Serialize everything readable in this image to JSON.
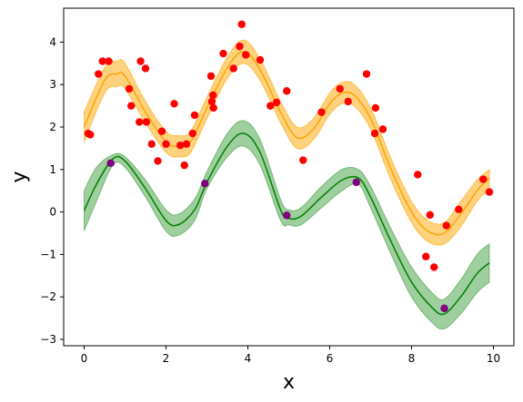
{
  "chart_data": {
    "type": "scatter",
    "xlabel": "x",
    "ylabel": "y",
    "xlim": [
      -0.5,
      10.5
    ],
    "ylim": [
      -3.15,
      4.8
    ],
    "xticks": [
      0,
      2,
      4,
      6,
      8,
      10
    ],
    "yticks": [
      -3,
      -2,
      -1,
      0,
      1,
      2,
      3,
      4
    ],
    "xtick_labels": [
      "0",
      "2",
      "4",
      "6",
      "8",
      "10"
    ],
    "ytick_labels": [
      "−3",
      "−2",
      "−1",
      "0",
      "1",
      "2",
      "3",
      "4"
    ],
    "grid": false,
    "curves": [
      {
        "color": "#ffa500",
        "band_color": "#ffa500",
        "x": [
          0.0,
          0.5,
          0.8,
          1.0,
          1.5,
          2.0,
          2.3,
          2.6,
          3.0,
          3.5,
          3.9,
          4.3,
          4.8,
          5.2,
          5.6,
          6.0,
          6.3,
          6.6,
          7.0,
          7.5,
          8.0,
          8.4,
          8.8,
          9.2,
          9.6,
          9.9
        ],
        "y": [
          2.0,
          3.1,
          3.25,
          3.2,
          2.35,
          1.65,
          1.55,
          1.65,
          2.45,
          3.4,
          3.78,
          3.35,
          2.35,
          1.75,
          1.95,
          2.55,
          2.8,
          2.75,
          2.2,
          1.0,
          0.0,
          -0.45,
          -0.5,
          -0.05,
          0.5,
          0.8
        ],
        "upper": [
          2.35,
          3.4,
          3.55,
          3.5,
          2.6,
          1.9,
          1.8,
          1.9,
          2.7,
          3.65,
          4.05,
          3.6,
          2.6,
          2.0,
          2.2,
          2.8,
          3.05,
          3.0,
          2.45,
          1.25,
          0.25,
          -0.2,
          -0.25,
          0.25,
          0.75,
          1.0
        ],
        "lower": [
          1.65,
          2.8,
          2.95,
          2.9,
          2.1,
          1.4,
          1.3,
          1.4,
          2.2,
          3.15,
          3.5,
          3.1,
          2.1,
          1.5,
          1.7,
          2.3,
          2.55,
          2.5,
          1.95,
          0.75,
          -0.25,
          -0.7,
          -0.75,
          -0.35,
          0.25,
          0.55
        ]
      },
      {
        "color": "#008000",
        "band_color": "#3f9e3f",
        "x": [
          0.0,
          0.3,
          0.7,
          1.0,
          1.5,
          2.0,
          2.3,
          2.7,
          3.0,
          3.5,
          3.9,
          4.3,
          4.8,
          5.0,
          5.3,
          5.8,
          6.3,
          6.7,
          7.0,
          7.5,
          8.0,
          8.5,
          8.8,
          9.2,
          9.6,
          9.9
        ],
        "y": [
          0.03,
          0.65,
          1.25,
          1.2,
          0.55,
          -0.2,
          -0.3,
          0.05,
          0.7,
          1.55,
          1.85,
          1.4,
          0.05,
          -0.15,
          -0.1,
          0.35,
          0.75,
          0.8,
          0.35,
          -0.7,
          -1.65,
          -2.25,
          -2.4,
          -2.0,
          -1.45,
          -1.2
        ],
        "upper": [
          0.5,
          1.05,
          1.35,
          1.3,
          0.75,
          0.05,
          -0.05,
          0.3,
          0.95,
          1.85,
          2.15,
          1.7,
          0.3,
          0.05,
          0.1,
          0.6,
          1.0,
          1.0,
          0.6,
          -0.4,
          -1.3,
          -1.9,
          -2.05,
          -1.6,
          -1.0,
          -0.75
        ],
        "lower": [
          -0.44,
          0.25,
          1.1,
          1.05,
          0.35,
          -0.45,
          -0.55,
          -0.2,
          0.55,
          1.3,
          1.55,
          1.1,
          -0.2,
          -0.3,
          -0.3,
          0.1,
          0.5,
          0.65,
          0.1,
          -1.0,
          -2.0,
          -2.6,
          -2.75,
          -2.4,
          -1.9,
          -1.65
        ]
      }
    ],
    "scatter_series": [
      {
        "color": "#ff0000",
        "x": [
          0.1,
          0.15,
          0.35,
          0.45,
          0.6,
          1.1,
          1.15,
          1.35,
          1.38,
          1.5,
          1.52,
          1.65,
          1.8,
          1.9,
          2.0,
          2.2,
          2.35,
          2.45,
          2.5,
          2.65,
          2.7,
          3.1,
          3.12,
          3.15,
          3.16,
          3.4,
          3.65,
          3.8,
          3.85,
          3.95,
          4.3,
          4.55,
          4.7,
          4.95,
          5.35,
          5.8,
          6.25,
          6.45,
          6.9,
          7.1,
          7.12,
          7.3,
          8.15,
          8.35,
          8.45,
          8.55,
          8.85,
          9.15,
          9.75,
          9.9
        ],
        "y": [
          1.85,
          1.82,
          3.25,
          3.55,
          3.55,
          2.9,
          2.5,
          2.12,
          3.55,
          3.38,
          2.12,
          1.6,
          1.2,
          1.9,
          1.6,
          2.55,
          1.57,
          1.1,
          1.6,
          1.85,
          2.28,
          3.2,
          2.6,
          2.75,
          2.45,
          3.73,
          3.38,
          3.9,
          4.42,
          3.7,
          3.58,
          2.5,
          2.58,
          2.85,
          1.22,
          2.35,
          2.9,
          2.6,
          3.25,
          1.85,
          2.45,
          1.95,
          0.88,
          -1.05,
          -0.07,
          -1.3,
          -0.32,
          0.06,
          0.77,
          0.47
        ]
      },
      {
        "color": "#800080",
        "x": [
          0.65,
          2.95,
          4.95,
          6.65,
          8.8
        ],
        "y": [
          1.15,
          0.67,
          -0.08,
          0.7,
          -2.27
        ]
      }
    ]
  }
}
